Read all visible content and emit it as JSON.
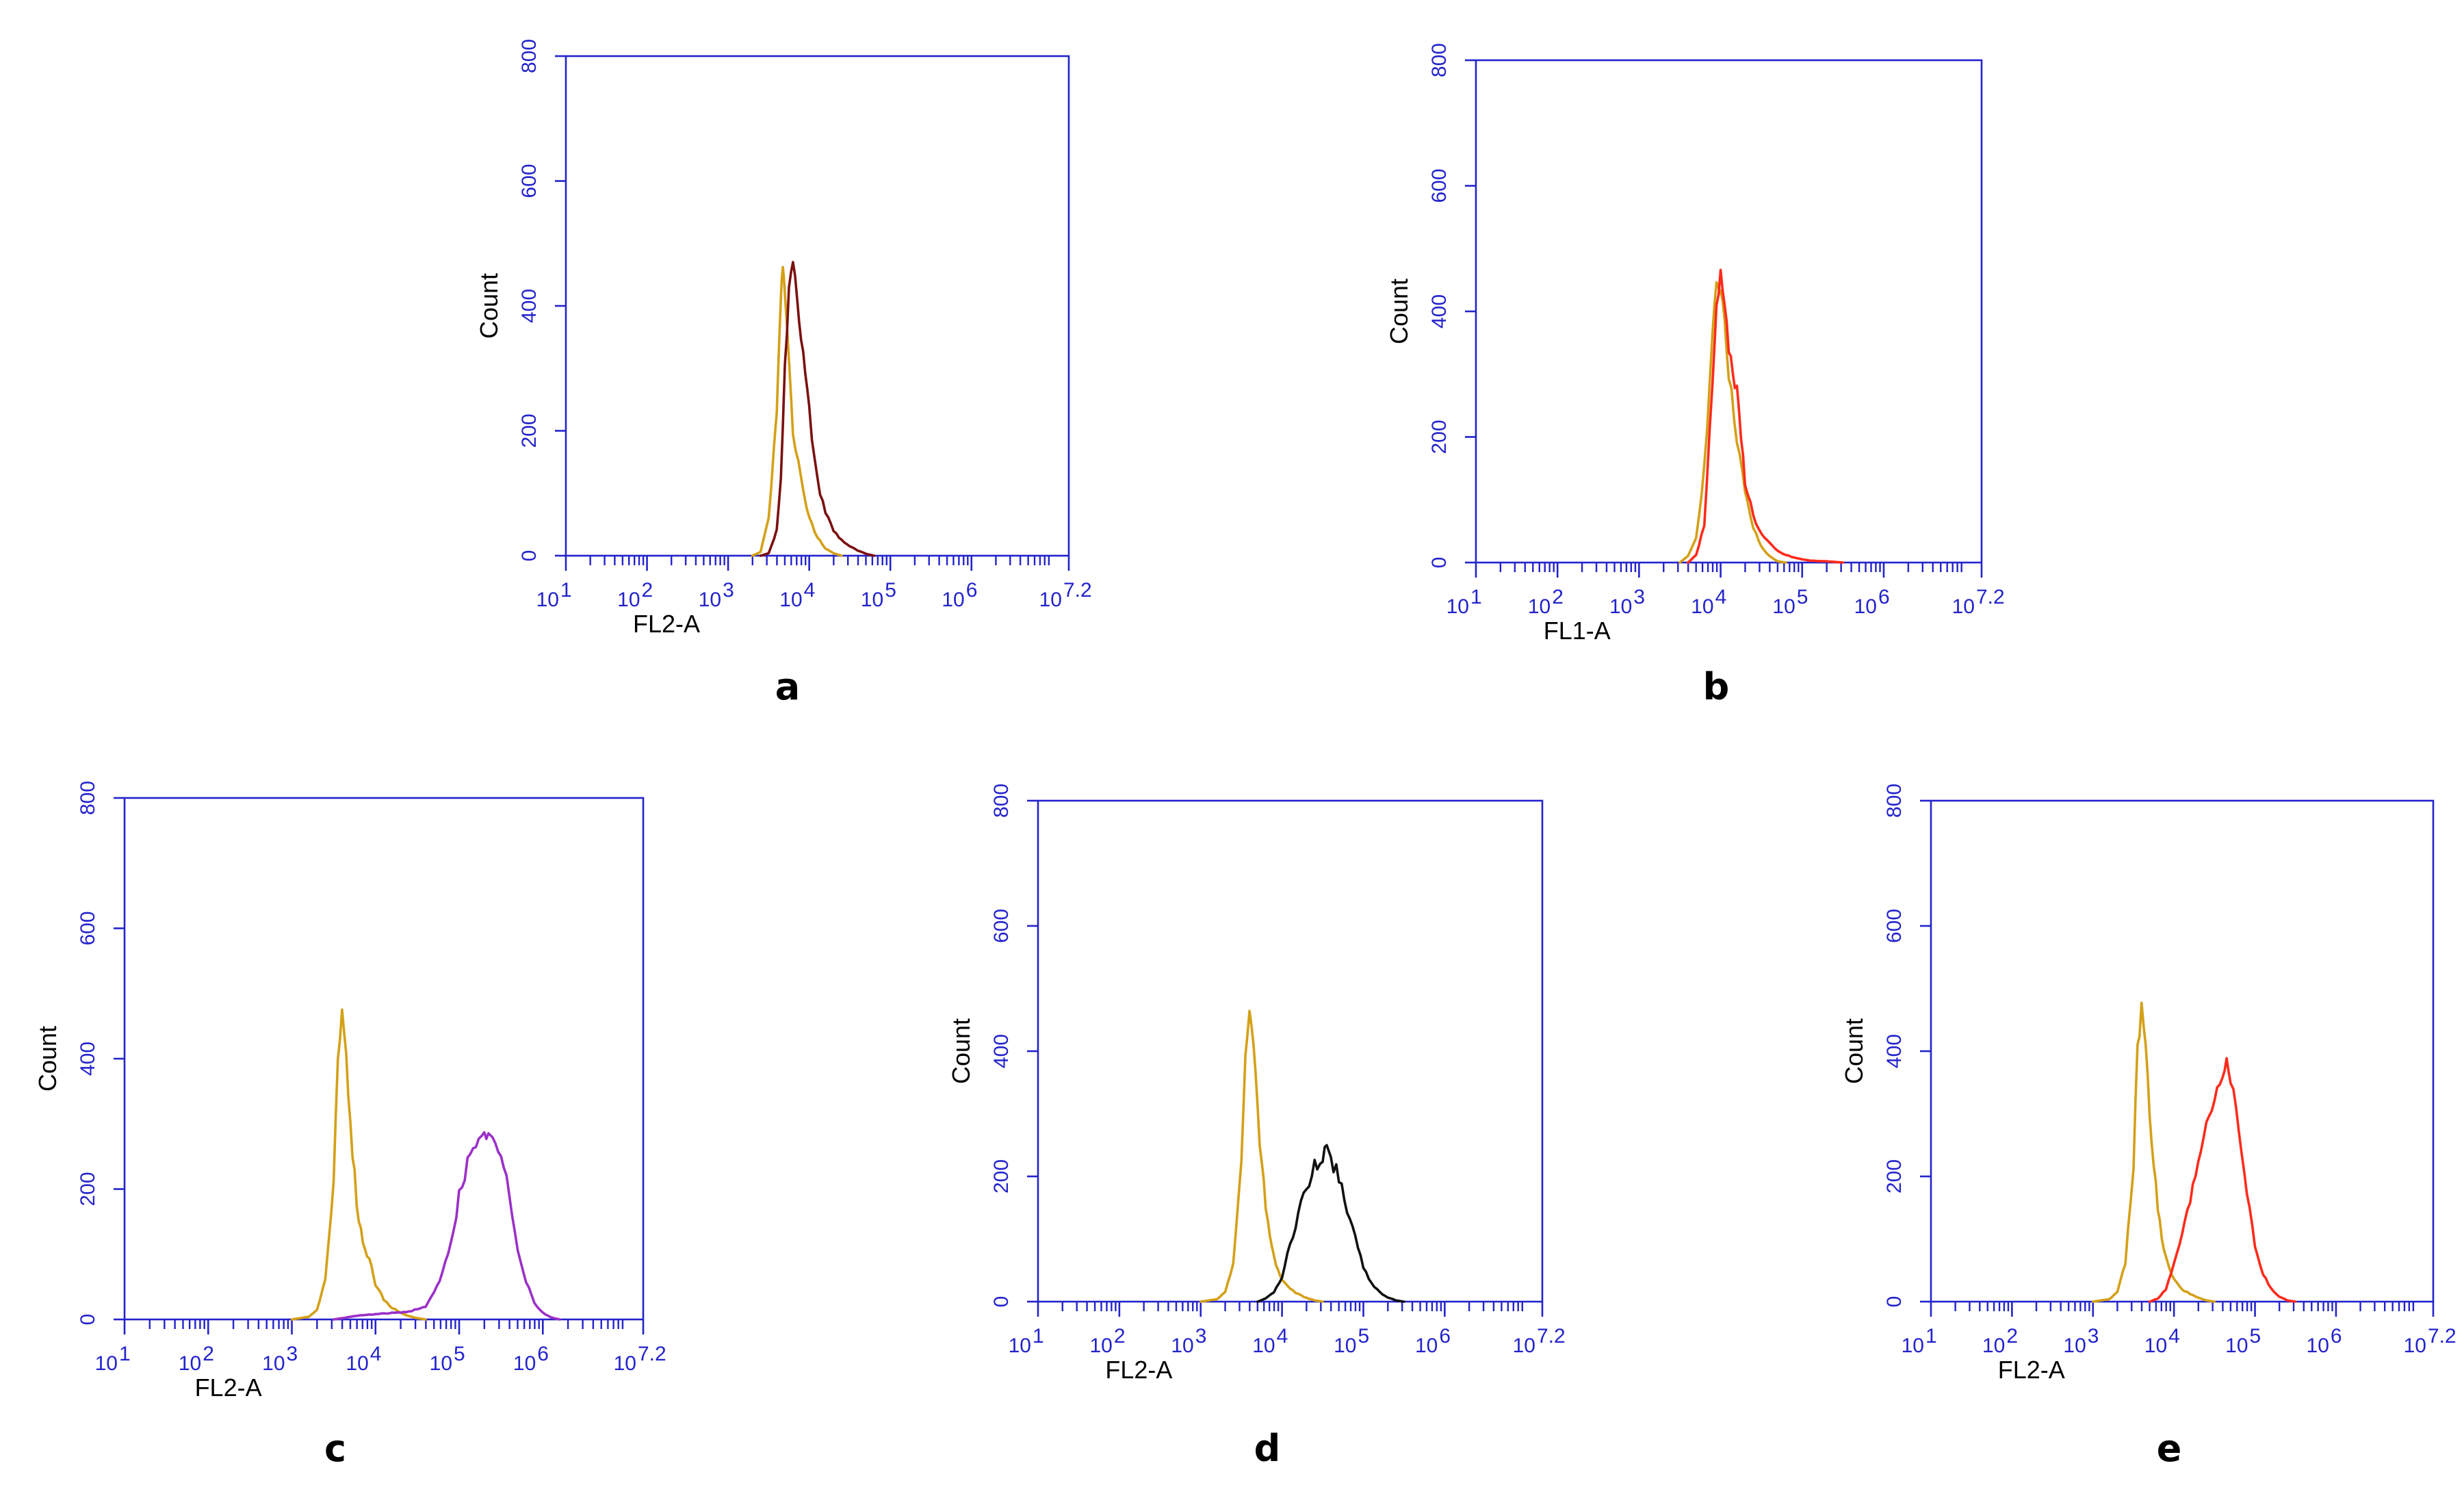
{
  "figure": {
    "panel_labels": [
      "a",
      "b",
      "c",
      "d",
      "e"
    ]
  },
  "chart_data": [
    {
      "panel": "a",
      "type": "line",
      "xlabel": "FL2-A",
      "ylabel": "Count",
      "xscale": "log10",
      "xlim": [
        10,
        15848932
      ],
      "ylim": [
        0,
        800
      ],
      "x_tick_labels": [
        [
          "10",
          "1"
        ],
        [
          "10",
          "2"
        ],
        [
          "10",
          "3"
        ],
        [
          "10",
          "4"
        ],
        [
          "10",
          "5"
        ],
        [
          "10",
          "6"
        ],
        [
          "10",
          "7.2"
        ]
      ],
      "y_tick_labels": [
        "0",
        "200",
        "400",
        "600",
        "800"
      ],
      "series": [
        {
          "color": "#d4a017",
          "points": [
            [
              1995,
              0
            ],
            [
              2512,
              6
            ],
            [
              3162,
              60
            ],
            [
              3981,
              230
            ],
            [
              4467,
              405
            ],
            [
              4727,
              470
            ],
            [
              5012,
              430
            ],
            [
              5623,
              310
            ],
            [
              6310,
              200
            ],
            [
              7943,
              120
            ],
            [
              10000,
              60
            ],
            [
              12589,
              30
            ],
            [
              15849,
              12
            ],
            [
              19953,
              4
            ],
            [
              25119,
              0
            ]
          ]
        },
        {
          "color": "#7b1010",
          "points": [
            [
              2512,
              0
            ],
            [
              3162,
              4
            ],
            [
              3981,
              40
            ],
            [
              4467,
              130
            ],
            [
              5012,
              300
            ],
            [
              5623,
              420
            ],
            [
              6310,
              480
            ],
            [
              7079,
              420
            ],
            [
              7943,
              350
            ],
            [
              8913,
              290
            ],
            [
              10000,
              230
            ],
            [
              12589,
              120
            ],
            [
              15849,
              70
            ],
            [
              19953,
              40
            ],
            [
              25119,
              25
            ],
            [
              31623,
              15
            ],
            [
              39811,
              8
            ],
            [
              50119,
              3
            ],
            [
              63096,
              0
            ]
          ]
        }
      ]
    },
    {
      "panel": "b",
      "type": "line",
      "xlabel": "FL1-A",
      "ylabel": "Count",
      "xscale": "log10",
      "xlim": [
        10,
        15848932
      ],
      "ylim": [
        0,
        800
      ],
      "x_tick_labels": [
        [
          "10",
          "1"
        ],
        [
          "10",
          "2"
        ],
        [
          "10",
          "3"
        ],
        [
          "10",
          "4"
        ],
        [
          "10",
          "5"
        ],
        [
          "10",
          "6"
        ],
        [
          "10",
          "7.2"
        ]
      ],
      "y_tick_labels": [
        "0",
        "200",
        "400",
        "600",
        "800"
      ],
      "series": [
        {
          "color": "#d4a017",
          "points": [
            [
              3162,
              0
            ],
            [
              3981,
              10
            ],
            [
              5012,
              40
            ],
            [
              6310,
              150
            ],
            [
              7943,
              360
            ],
            [
              8913,
              440
            ],
            [
              10000,
              440
            ],
            [
              11220,
              390
            ],
            [
              12589,
              300
            ],
            [
              15849,
              200
            ],
            [
              19953,
              110
            ],
            [
              25119,
              55
            ],
            [
              31623,
              25
            ],
            [
              39811,
              10
            ],
            [
              50119,
              2
            ],
            [
              63096,
              0
            ]
          ]
        },
        {
          "color": "#ff2a1a",
          "points": [
            [
              3981,
              0
            ],
            [
              5012,
              12
            ],
            [
              6310,
              60
            ],
            [
              7943,
              280
            ],
            [
              8913,
              410
            ],
            [
              10000,
              460
            ],
            [
              11220,
              420
            ],
            [
              12589,
              340
            ],
            [
              14125,
              300
            ],
            [
              15849,
              270
            ],
            [
              17783,
              200
            ],
            [
              19953,
              130
            ],
            [
              25119,
              75
            ],
            [
              31623,
              45
            ],
            [
              39811,
              30
            ],
            [
              50119,
              18
            ],
            [
              63096,
              12
            ],
            [
              79433,
              8
            ],
            [
              100000,
              5
            ],
            [
              125893,
              3
            ],
            [
              199526,
              2
            ],
            [
              316228,
              0
            ]
          ]
        }
      ]
    },
    {
      "panel": "c",
      "type": "line",
      "xlabel": "FL2-A",
      "ylabel": "Count",
      "xscale": "log10",
      "xlim": [
        10,
        15848932
      ],
      "ylim": [
        0,
        800
      ],
      "x_tick_labels": [
        [
          "10",
          "1"
        ],
        [
          "10",
          "2"
        ],
        [
          "10",
          "3"
        ],
        [
          "10",
          "4"
        ],
        [
          "10",
          "5"
        ],
        [
          "10",
          "6"
        ],
        [
          "10",
          "7.2"
        ]
      ],
      "y_tick_labels": [
        "0",
        "200",
        "400",
        "600",
        "800"
      ],
      "series": [
        {
          "color": "#d4a017",
          "points": [
            [
              1000,
              0
            ],
            [
              1585,
              4
            ],
            [
              2000,
              15
            ],
            [
              2512,
              60
            ],
            [
              3162,
              220
            ],
            [
              3548,
              400
            ],
            [
              3981,
              470
            ],
            [
              4467,
              410
            ],
            [
              5012,
              300
            ],
            [
              5623,
              220
            ],
            [
              6310,
              150
            ],
            [
              7079,
              120
            ],
            [
              7943,
              100
            ],
            [
              8913,
              80
            ],
            [
              10000,
              55
            ],
            [
              12589,
              30
            ],
            [
              15849,
              18
            ],
            [
              19953,
              10
            ],
            [
              25119,
              5
            ],
            [
              31623,
              2
            ],
            [
              39811,
              0
            ]
          ]
        },
        {
          "color": "#9b30c8",
          "points": [
            [
              3162,
              0
            ],
            [
              6310,
              6
            ],
            [
              15849,
              10
            ],
            [
              25119,
              12
            ],
            [
              39811,
              20
            ],
            [
              50119,
              40
            ],
            [
              63096,
              70
            ],
            [
              79433,
              120
            ],
            [
              100000,
              190
            ],
            [
              125893,
              240
            ],
            [
              158489,
              260
            ],
            [
              199526,
              280
            ],
            [
              223872,
              290
            ],
            [
              251189,
              270
            ],
            [
              316228,
              250
            ],
            [
              398107,
              190
            ],
            [
              501187,
              110
            ],
            [
              630957,
              60
            ],
            [
              794328,
              25
            ],
            [
              1000000,
              10
            ],
            [
              1258925,
              3
            ],
            [
              1584893,
              0
            ]
          ]
        }
      ]
    },
    {
      "panel": "d",
      "type": "line",
      "xlabel": "FL2-A",
      "ylabel": "Count",
      "xscale": "log10",
      "xlim": [
        10,
        15848932
      ],
      "ylim": [
        0,
        800
      ],
      "x_tick_labels": [
        [
          "10",
          "1"
        ],
        [
          "10",
          "2"
        ],
        [
          "10",
          "3"
        ],
        [
          "10",
          "4"
        ],
        [
          "10",
          "5"
        ],
        [
          "10",
          "6"
        ],
        [
          "10",
          "7.2"
        ]
      ],
      "y_tick_labels": [
        "0",
        "200",
        "400",
        "600",
        "800"
      ],
      "series": [
        {
          "color": "#d4a017",
          "points": [
            [
              1000,
              0
            ],
            [
              1585,
              4
            ],
            [
              2000,
              15
            ],
            [
              2512,
              60
            ],
            [
              3162,
              220
            ],
            [
              3548,
              400
            ],
            [
              3981,
              470
            ],
            [
              4467,
              410
            ],
            [
              5012,
              300
            ],
            [
              5623,
              220
            ],
            [
              6310,
              150
            ],
            [
              7079,
              100
            ],
            [
              7943,
              70
            ],
            [
              8913,
              50
            ],
            [
              10000,
              35
            ],
            [
              12589,
              20
            ],
            [
              15849,
              12
            ],
            [
              19953,
              6
            ],
            [
              25119,
              2
            ],
            [
              31623,
              0
            ]
          ]
        },
        {
          "color": "#111111",
          "points": [
            [
              5012,
              0
            ],
            [
              6310,
              5
            ],
            [
              7943,
              15
            ],
            [
              10000,
              40
            ],
            [
              12589,
              90
            ],
            [
              15849,
              140
            ],
            [
              19953,
              185
            ],
            [
              25119,
              215
            ],
            [
              31623,
              230
            ],
            [
              35481,
              260
            ],
            [
              39811,
              225
            ],
            [
              50119,
              200
            ],
            [
              63096,
              150
            ],
            [
              79433,
              100
            ],
            [
              100000,
              55
            ],
            [
              125893,
              30
            ],
            [
              158489,
              15
            ],
            [
              199526,
              7
            ],
            [
              251189,
              2
            ],
            [
              316228,
              0
            ]
          ]
        }
      ]
    },
    {
      "panel": "e",
      "type": "line",
      "xlabel": "FL2-A",
      "ylabel": "Count",
      "xscale": "log10",
      "xlim": [
        10,
        15848932
      ],
      "ylim": [
        0,
        800
      ],
      "x_tick_labels": [
        [
          "10",
          "1"
        ],
        [
          "10",
          "2"
        ],
        [
          "10",
          "3"
        ],
        [
          "10",
          "4"
        ],
        [
          "10",
          "5"
        ],
        [
          "10",
          "6"
        ],
        [
          "10",
          "7.2"
        ]
      ],
      "y_tick_labels": [
        "0",
        "200",
        "400",
        "600",
        "800"
      ],
      "series": [
        {
          "color": "#d4a017",
          "points": [
            [
              1000,
              0
            ],
            [
              1585,
              4
            ],
            [
              2000,
              15
            ],
            [
              2512,
              60
            ],
            [
              3162,
              220
            ],
            [
              3548,
              400
            ],
            [
              3981,
              470
            ],
            [
              4467,
              410
            ],
            [
              5012,
              300
            ],
            [
              5623,
              220
            ],
            [
              6310,
              150
            ],
            [
              7079,
              100
            ],
            [
              7943,
              70
            ],
            [
              8913,
              50
            ],
            [
              10000,
              35
            ],
            [
              12589,
              20
            ],
            [
              15849,
              12
            ],
            [
              19953,
              6
            ],
            [
              25119,
              2
            ],
            [
              31623,
              0
            ]
          ]
        },
        {
          "color": "#ff2a1a",
          "points": [
            [
              5012,
              0
            ],
            [
              6310,
              5
            ],
            [
              7943,
              20
            ],
            [
              10000,
              60
            ],
            [
              12589,
              110
            ],
            [
              15849,
              160
            ],
            [
              19953,
              230
            ],
            [
              25119,
              290
            ],
            [
              31623,
              330
            ],
            [
              39811,
              370
            ],
            [
              44668,
              380
            ],
            [
              50119,
              360
            ],
            [
              63096,
              280
            ],
            [
              79433,
              180
            ],
            [
              100000,
              90
            ],
            [
              125893,
              45
            ],
            [
              158489,
              20
            ],
            [
              199526,
              8
            ],
            [
              251189,
              2
            ],
            [
              316228,
              0
            ]
          ]
        }
      ]
    }
  ]
}
